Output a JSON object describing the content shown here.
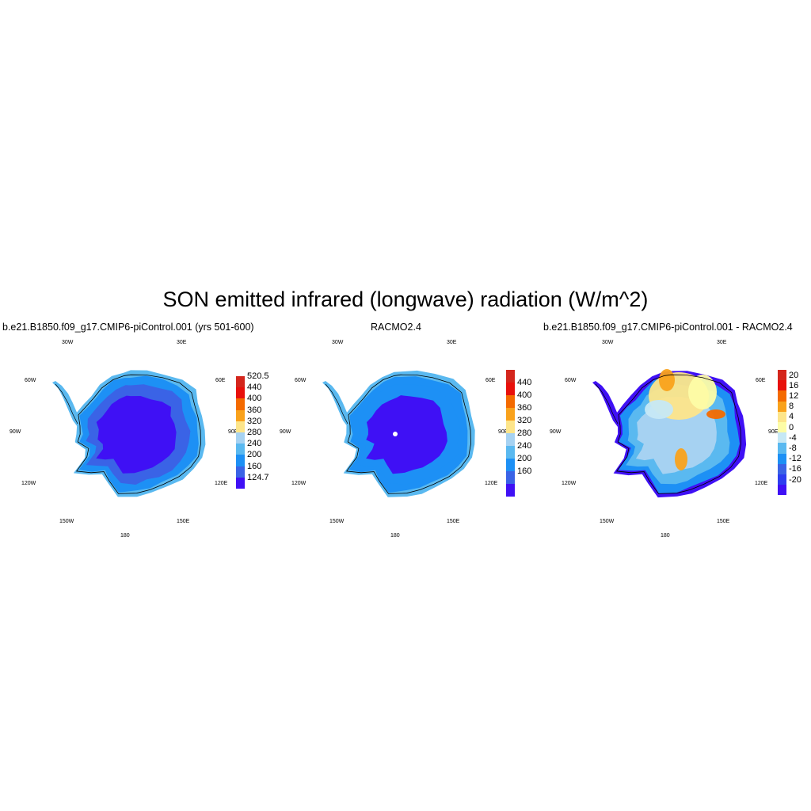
{
  "figure": {
    "title": "SON emitted infrared (longwave) radiation (W/m^2)"
  },
  "colors": {
    "land_outline": "#000000",
    "no_data": "#ffffff"
  },
  "panels": [
    {
      "id": "model",
      "title": "b.e21.B1850.f09_g17.CMIP6-piControl.001 (yrs 501-600)",
      "longitude_labels": [
        "30W",
        "30E",
        "60W",
        "60E",
        "90W",
        "90E",
        "120W",
        "120E",
        "150W",
        "150E",
        "180"
      ],
      "fill": {
        "edge": "#5ab9f0",
        "coast": "#1d90f5",
        "mid": "#3a63e6",
        "interior": "#3f10f5"
      },
      "colorbar": {
        "labels": [
          "520.5",
          "440",
          "400",
          "360",
          "320",
          "280",
          "240",
          "200",
          "160",
          "124.7"
        ],
        "colors": [
          "#d4261c",
          "#e8100b",
          "#f46a00",
          "#f9a21c",
          "#fde58a",
          "#a6d2f2",
          "#5ab9f0",
          "#1d90f5",
          "#3a63e6",
          "#3f10f5"
        ]
      }
    },
    {
      "id": "obs",
      "title": "RACMO2.4",
      "longitude_labels": [
        "30W",
        "30E",
        "60W",
        "60E",
        "90W",
        "90E",
        "120W",
        "120E",
        "150W",
        "150E",
        "180"
      ],
      "fill": {
        "edge": "#5ab9f0",
        "coast": "#1d90f5",
        "mid": "#1d90f5",
        "interior": "#3f10f5"
      },
      "colorbar": {
        "labels": [
          "440",
          "400",
          "360",
          "320",
          "280",
          "240",
          "200",
          "160"
        ],
        "colors": [
          "#d4261c",
          "#e8100b",
          "#f46a00",
          "#f9a21c",
          "#fde58a",
          "#a6d2f2",
          "#5ab9f0",
          "#1d90f5",
          "#3a63e6",
          "#3f10f5"
        ]
      }
    },
    {
      "id": "diff",
      "title": "b.e21.B1850.f09_g17.CMIP6-piControl.001 - RACMO2.4",
      "longitude_labels": [
        "30W",
        "30E",
        "60W",
        "60E",
        "90W",
        "90E",
        "120W",
        "120E",
        "150W",
        "150E",
        "180"
      ],
      "fill": {
        "edge": "#3f10f5",
        "coast": "#1d90f5",
        "mid": "#5ab9f0",
        "interior": "#a6d2f2"
      },
      "colorbar": {
        "labels": [
          "20",
          "16",
          "12",
          "8",
          "4",
          "0",
          "-4",
          "-8",
          "-12",
          "-16",
          "-20"
        ],
        "colors": [
          "#d4261c",
          "#e8100b",
          "#f46a00",
          "#f9a21c",
          "#fde58a",
          "#fdfca6",
          "#c6e8f5",
          "#5ab9f0",
          "#1d90f5",
          "#3a63e6",
          "#2e3ef0",
          "#3f10f5"
        ]
      }
    }
  ]
}
